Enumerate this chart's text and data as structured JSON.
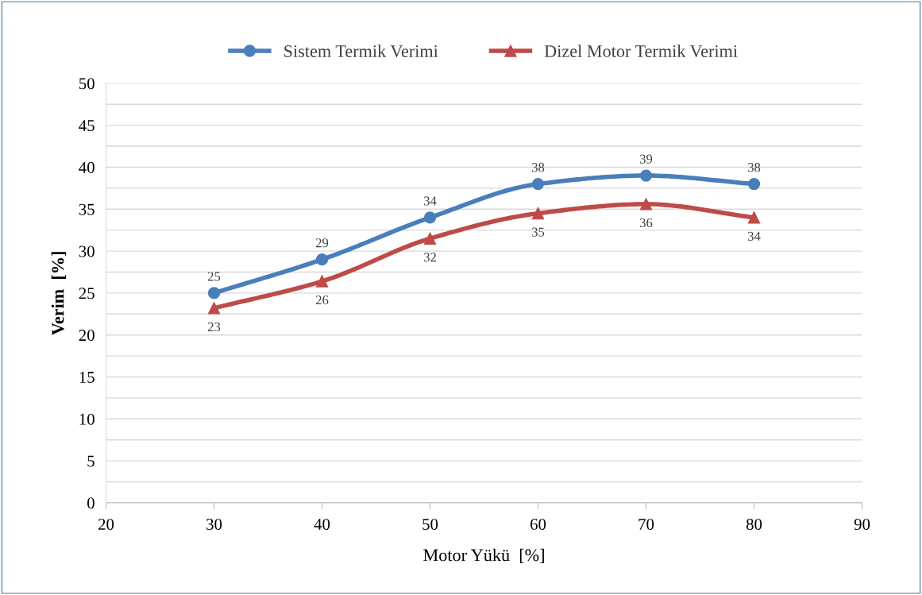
{
  "chart_data": {
    "type": "line",
    "xlabel": "Motor Yükü  [%]",
    "ylabel": "Verim  [%]",
    "x": [
      30,
      40,
      50,
      60,
      70,
      80
    ],
    "series": [
      {
        "name": "Sistem Termik Verimi",
        "color": "#4a7ebb",
        "marker": "circle",
        "values": [
          25,
          29,
          34,
          38,
          39,
          38
        ],
        "value_labels": [
          "25",
          "29",
          "34",
          "38",
          "39",
          "38"
        ]
      },
      {
        "name": "Dizel Motor Termik Verimi",
        "color": "#be4b48",
        "marker": "triangle",
        "values": [
          23.2,
          26.4,
          31.5,
          34.5,
          35.6,
          34.0
        ],
        "value_labels": [
          "23",
          "26",
          "32",
          "35",
          "36",
          "34"
        ]
      }
    ],
    "xlim": [
      20,
      90
    ],
    "xticks": [
      20,
      30,
      40,
      50,
      60,
      70,
      80,
      90
    ],
    "ylim": [
      0,
      50
    ],
    "yticks": [
      0,
      {
        "value": 2.5,
        "label": null
      },
      5,
      {
        "value": 7.5,
        "label": null
      },
      10,
      {
        "value": 12.5,
        "label": null
      },
      15,
      {
        "value": 17.5,
        "label": null
      },
      20,
      {
        "value": 22.5,
        "label": null
      },
      25,
      {
        "value": 27.5,
        "label": null
      },
      30,
      {
        "value": 32.5,
        "label": null
      },
      35,
      {
        "value": 37.5,
        "label": null
      },
      40,
      {
        "value": 42.5,
        "label": null
      },
      45,
      {
        "value": 47.5,
        "label": null
      },
      50
    ],
    "grid": "y",
    "legend": "top"
  }
}
